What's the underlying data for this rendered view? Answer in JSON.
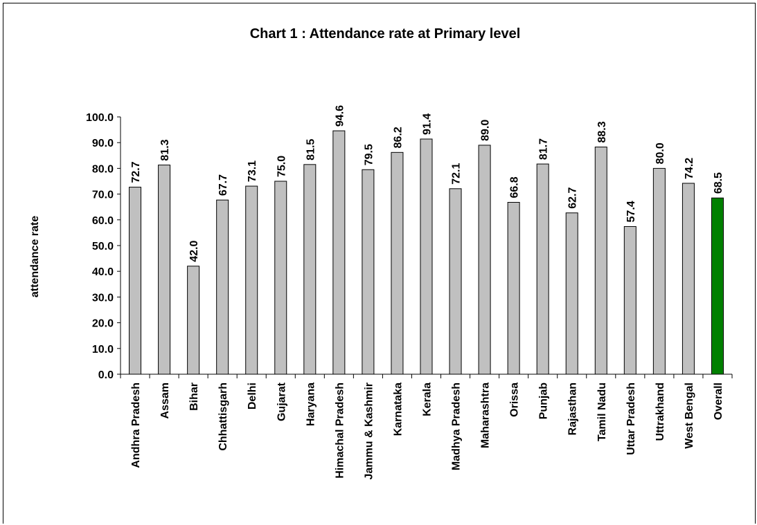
{
  "chart_data": {
    "type": "bar",
    "title": "Chart 1 : Attendance rate at Primary  level",
    "xlabel": "",
    "ylabel": "attendance rate",
    "ylim": [
      0,
      100
    ],
    "yticks": [
      "0.0",
      "10.0",
      "20.0",
      "30.0",
      "40.0",
      "50.0",
      "60.0",
      "70.0",
      "80.0",
      "90.0",
      "100.0"
    ],
    "grid": false,
    "legend": "none",
    "categories": [
      "Andhra Pradesh",
      "Assam",
      "Bihar",
      "Chhattisgarh",
      "Delhi",
      "Gujarat",
      "Haryana",
      "Himachal Pradesh",
      "Jammu & Kashmir",
      "Karnataka",
      "Kerala",
      "Madhya Pradesh",
      "Maharashtra",
      "Orissa",
      "Punjab",
      "Rajasthan",
      "Tamil Nadu",
      "Uttar Pradesh",
      "Uttrakhand",
      "West Bengal",
      "Overall"
    ],
    "values": [
      72.7,
      81.3,
      42.0,
      67.7,
      73.1,
      75.0,
      81.5,
      94.6,
      79.5,
      86.2,
      91.4,
      72.1,
      89.0,
      66.8,
      81.7,
      62.7,
      88.3,
      57.4,
      80.0,
      74.2,
      68.5
    ],
    "value_labels": [
      "72.7",
      "81.3",
      "42.0",
      "67.7",
      "73.1",
      "75.0",
      "81.5",
      "94.6",
      "79.5",
      "86.2",
      "91.4",
      "72.1",
      "89.0",
      "66.8",
      "81.7",
      "62.7",
      "88.3",
      "57.4",
      "80.0",
      "74.2",
      "68.5"
    ],
    "colors": {
      "bar": "#c0c0c0",
      "highlight_bar": "#008000",
      "bar_stroke": "#000000"
    },
    "highlight_category": "Overall"
  }
}
